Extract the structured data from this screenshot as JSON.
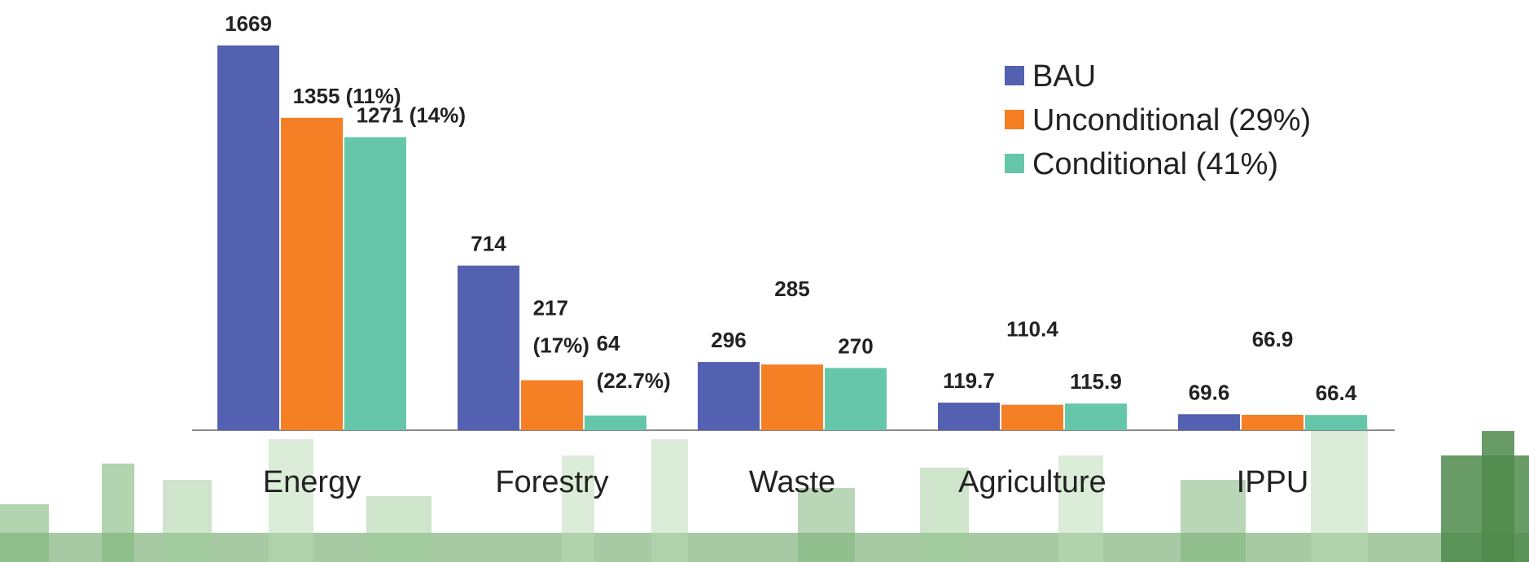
{
  "chart_data": {
    "type": "bar",
    "categories": [
      "Energy",
      "Forestry",
      "Waste",
      "Agriculture",
      "IPPU"
    ],
    "series": [
      {
        "name": "BAU",
        "color": "#5361b0",
        "values": [
          1669,
          714,
          296,
          119.7,
          69.6
        ]
      },
      {
        "name": "Unconditional (29%)",
        "color": "#f47f24",
        "values": [
          1355,
          217,
          285,
          110.4,
          66.9
        ],
        "value_labels": [
          "1355 (11%)",
          "217 (17%)",
          "285",
          "110.4",
          "66.9"
        ]
      },
      {
        "name": "Conditional (41%)",
        "color": "#66c6aa",
        "values": [
          1271,
          64,
          270,
          115.9,
          66.4
        ],
        "value_labels": [
          "1271 (14%)",
          "64 (22.7%)",
          "270",
          "115.9",
          "66.4"
        ]
      }
    ],
    "legend": "upper right"
  }
}
